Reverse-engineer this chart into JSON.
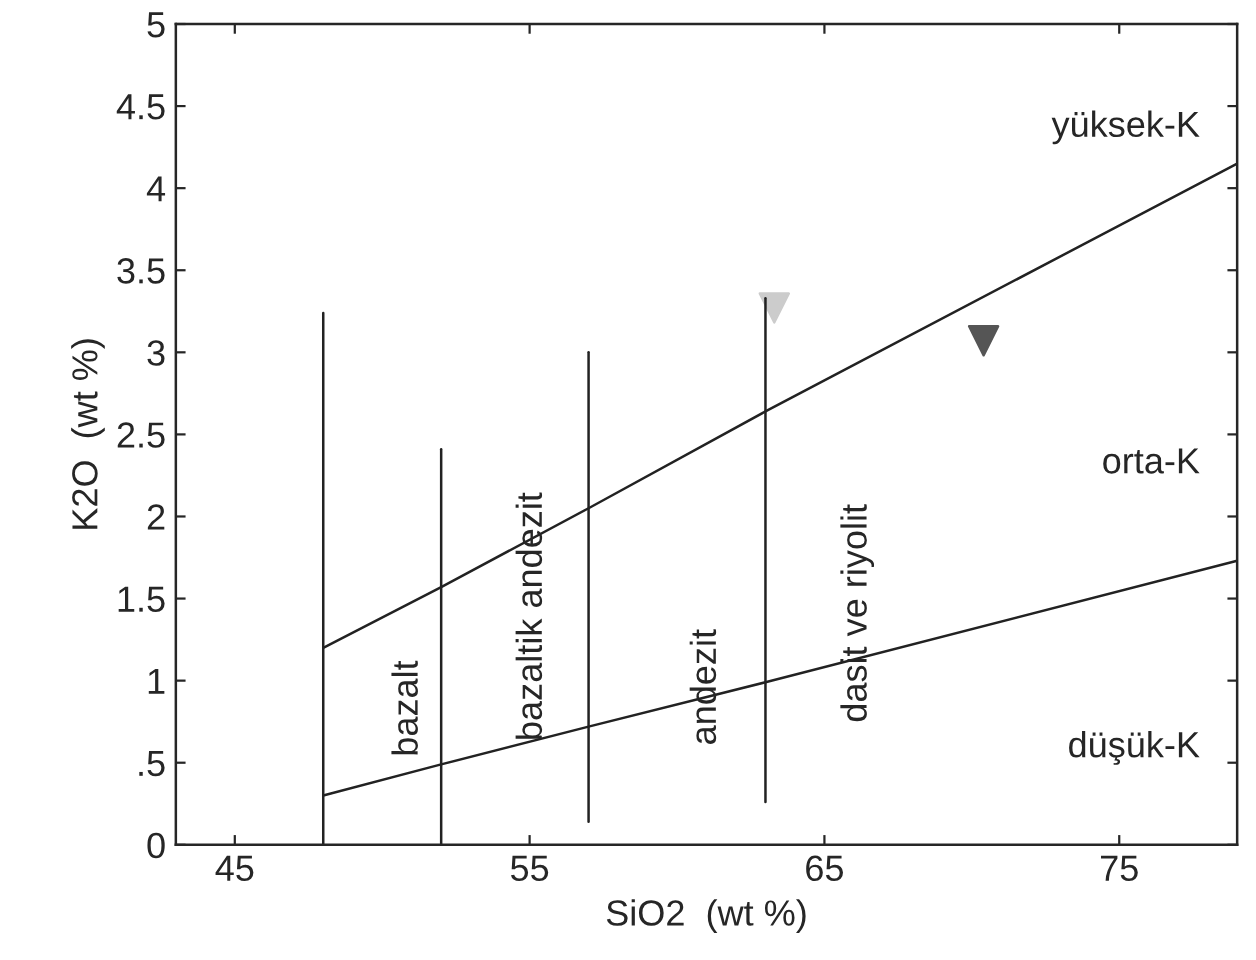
{
  "chart_data": {
    "type": "line",
    "xlabel": "SiO2  (wt %)",
    "ylabel": "K2O  (wt %)",
    "xlim": [
      43,
      79
    ],
    "xticks": [
      45,
      55,
      65,
      75
    ],
    "ylim": [
      0,
      5
    ],
    "yticks": [
      0,
      {
        "value": 0.5,
        "label": ".5"
      },
      1,
      1.5,
      2,
      2.5,
      3,
      3.5,
      4,
      4.5,
      5
    ],
    "grid": false,
    "legend": false,
    "marker": "none",
    "line_style": "solid",
    "series": [
      {
        "color": "#222222",
        "x": [
          48,
          52,
          57,
          63,
          79
        ],
        "values": [
          1.2,
          1.57,
          2.05,
          2.64,
          4.15
        ]
      },
      {
        "color": "#222222",
        "x": [
          48,
          52,
          57,
          63,
          79
        ],
        "values": [
          0.3,
          0.49,
          0.72,
          0.99,
          1.73
        ]
      },
      {
        "color": "#222222",
        "x": [
          48,
          48
        ],
        "values": [
          0,
          3.24
        ]
      },
      {
        "color": "#222222",
        "x": [
          52,
          52
        ],
        "values": [
          0,
          2.41
        ]
      },
      {
        "color": "#222222",
        "x": [
          57,
          57
        ],
        "values": [
          0.14,
          3.0
        ]
      },
      {
        "color": "#222222",
        "x": [
          63,
          63
        ],
        "values": [
          0.26,
          3.33
        ]
      },
      {
        "type": "scatter",
        "marker": "triangle",
        "color": "#cccccc",
        "x": [
          63.3
        ],
        "values": [
          3.27
        ]
      },
      {
        "type": "scatter",
        "marker": "triangle",
        "color": "#555555",
        "x": [
          70.4
        ],
        "values": [
          3.07
        ]
      }
    ],
    "annotations": [
      "bazalt",
      "bazaltik andezit",
      "andezit",
      "dasit ve riyolit",
      "yüksek-K",
      "orta-K",
      "düşük-K"
    ]
  }
}
